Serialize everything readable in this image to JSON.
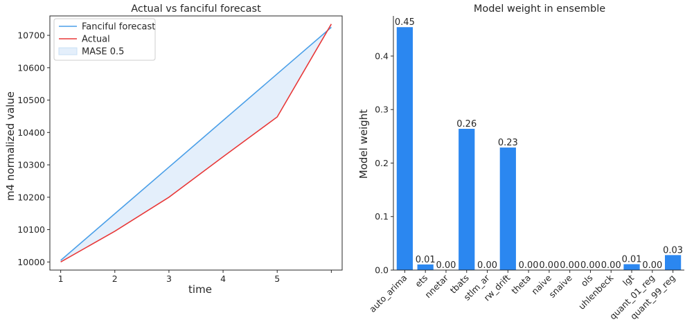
{
  "chart_data": [
    {
      "type": "line",
      "title": "Actual vs fanciful forecast",
      "xlabel": "time",
      "ylabel": "m4 normalized value",
      "x": [
        1,
        2,
        3,
        4,
        5,
        6
      ],
      "x_tick_labels": [
        "1",
        "2",
        "3",
        "4",
        "5",
        ""
      ],
      "xlim": [
        0.8,
        6.2
      ],
      "ylim": [
        9975,
        10760
      ],
      "y_ticks": [
        10000,
        10100,
        10200,
        10300,
        10400,
        10500,
        10600,
        10700
      ],
      "grid": false,
      "legend_position": "top-left",
      "series": [
        {
          "name": "Fanciful forecast",
          "color": "#4a9fe8",
          "values": [
            10005,
            10149,
            10293,
            10437,
            10581,
            10725
          ]
        },
        {
          "name": "Actual",
          "color": "#e83838",
          "values": [
            10000,
            10095,
            10200,
            10325,
            10448,
            10735
          ]
        }
      ],
      "fill": {
        "name": "MASE 0.5",
        "color": "#e4effb"
      }
    },
    {
      "type": "bar",
      "title": "Model weight in ensemble",
      "ylabel": "Model weight",
      "categories": [
        "auto_arima",
        "ets",
        "nnetar",
        "tbats",
        "stlm_ar",
        "rw_drift",
        "theta",
        "naive",
        "snaive",
        "ols",
        "uhlenbeck",
        "lgt",
        "quant_01_reg",
        "quant_99_reg"
      ],
      "values": [
        0.454,
        0.0105,
        0.0,
        0.264,
        0.0,
        0.229,
        0.0,
        0.0,
        0.0,
        0.0,
        0.0,
        0.011,
        0.0,
        0.028
      ],
      "data_labels": [
        "0.45",
        "0.01",
        "0.00",
        "0.26",
        "0.00",
        "0.23",
        "0.00",
        "0.00",
        "0.00",
        "0.00",
        "0.00",
        "0.01",
        "0.00",
        "0.03"
      ],
      "ylim": [
        0,
        0.475
      ],
      "y_ticks": [
        0.0,
        0.1,
        0.2,
        0.3,
        0.4
      ],
      "y_tick_labels": [
        "0.0",
        "0.1",
        "0.2",
        "0.3",
        "0.4"
      ],
      "color": "#2b87f0",
      "grid": false
    }
  ]
}
